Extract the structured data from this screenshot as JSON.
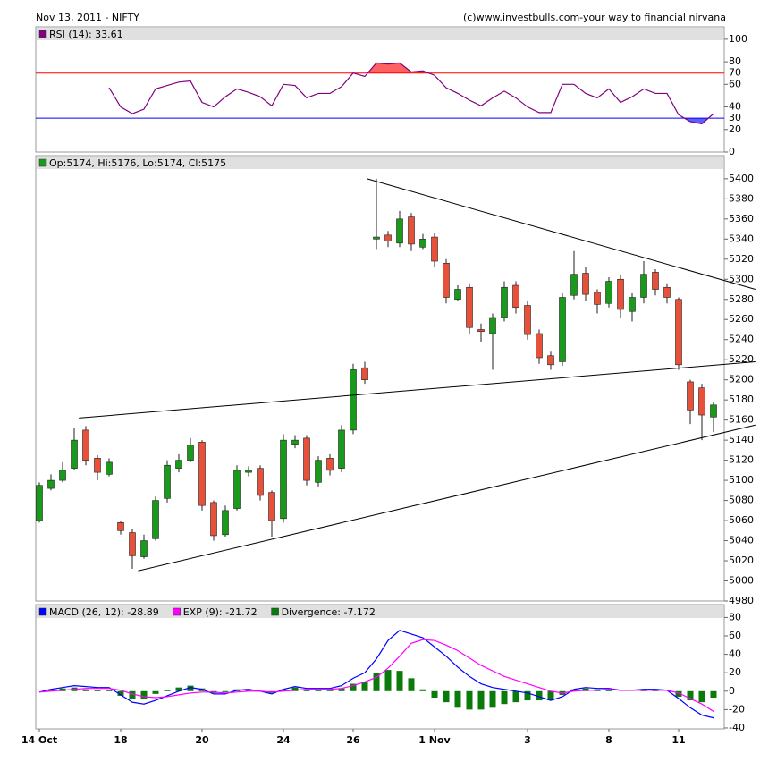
{
  "header": {
    "title": "Nov 13, 2011 -  NIFTY",
    "credit": "(c)www.investbulls.com-your way to financial nirvana"
  },
  "chart_data": [
    {
      "type": "line",
      "title": "RSI (14): 33.61",
      "color": "#800080",
      "values": [
        null,
        null,
        null,
        null,
        null,
        null,
        57,
        40,
        34,
        38,
        56,
        59,
        62,
        63,
        44,
        40,
        49,
        56,
        53,
        49,
        41,
        60,
        59,
        48,
        52,
        52,
        58,
        70,
        67,
        79,
        78,
        79,
        71,
        72,
        68,
        57,
        52,
        46,
        41,
        48,
        54,
        48,
        40,
        35,
        35,
        60,
        60,
        52,
        48,
        56,
        44,
        49,
        56,
        52,
        52,
        33,
        27,
        25,
        34
      ],
      "levels": [
        {
          "value": 70,
          "color": "#ff0000",
          "fill": "#ff6060"
        },
        {
          "value": 30,
          "color": "#0000ff",
          "fill": "#6060ff"
        }
      ],
      "ylim": [
        0,
        111
      ],
      "yticks": [
        0,
        20,
        40,
        60,
        80,
        100
      ]
    },
    {
      "type": "candlestick",
      "title": "Op:5174, Hi:5176, Lo:5174, Cl:5175",
      "legend_color": "#1a9a1a",
      "up_color": "#1a9a1a",
      "down_color": "#e8503a",
      "open": [
        5060,
        5092,
        5100,
        5112,
        5150,
        5122,
        5106,
        5058,
        5048,
        5024,
        5042,
        5082,
        5112,
        5120,
        5138,
        5078,
        5046,
        5072,
        5108,
        5112,
        5088,
        5062,
        5136,
        5142,
        5098,
        5122,
        5112,
        5150,
        5212,
        5340,
        5344,
        5336,
        5362,
        5332,
        5342,
        5316,
        5280,
        5292,
        5250,
        5246,
        5262,
        5294,
        5274,
        5246,
        5224,
        5218,
        5284,
        5306,
        5287,
        5276,
        5300,
        5268,
        5282,
        5307,
        5292,
        5280,
        5198,
        5192,
        5163
      ],
      "high": [
        5098,
        5106,
        5118,
        5152,
        5154,
        5125,
        5122,
        5060,
        5052,
        5046,
        5084,
        5120,
        5126,
        5142,
        5140,
        5080,
        5075,
        5115,
        5114,
        5115,
        5090,
        5146,
        5145,
        5145,
        5124,
        5126,
        5155,
        5216,
        5218,
        5400,
        5348,
        5368,
        5366,
        5345,
        5346,
        5320,
        5294,
        5296,
        5256,
        5266,
        5298,
        5298,
        5278,
        5250,
        5228,
        5286,
        5328,
        5312,
        5290,
        5302,
        5304,
        5286,
        5318,
        5310,
        5296,
        5282,
        5200,
        5196,
        5178
      ],
      "low": [
        5058,
        5090,
        5098,
        5110,
        5115,
        5100,
        5104,
        5046,
        5012,
        5022,
        5040,
        5078,
        5108,
        5118,
        5070,
        5040,
        5044,
        5070,
        5104,
        5080,
        5044,
        5058,
        5132,
        5095,
        5094,
        5105,
        5108,
        5146,
        5196,
        5330,
        5332,
        5332,
        5328,
        5330,
        5312,
        5276,
        5278,
        5246,
        5238,
        5210,
        5258,
        5266,
        5240,
        5216,
        5210,
        5214,
        5280,
        5278,
        5266,
        5272,
        5262,
        5258,
        5276,
        5284,
        5276,
        5210,
        5156,
        5140,
        5148
      ],
      "close": [
        5095,
        5100,
        5110,
        5140,
        5120,
        5108,
        5118,
        5050,
        5025,
        5040,
        5080,
        5115,
        5120,
        5135,
        5075,
        5045,
        5070,
        5110,
        5110,
        5085,
        5060,
        5140,
        5140,
        5100,
        5120,
        5110,
        5150,
        5210,
        5200,
        5342,
        5338,
        5360,
        5335,
        5340,
        5318,
        5282,
        5290,
        5252,
        5248,
        5262,
        5292,
        5272,
        5245,
        5222,
        5215,
        5282,
        5305,
        5285,
        5275,
        5298,
        5270,
        5282,
        5305,
        5290,
        5282,
        5215,
        5170,
        5165,
        5175
      ],
      "trendlines": [
        {
          "start": [
            3.4,
            5162
          ],
          "end": [
            61.6,
            5218
          ]
        },
        {
          "start": [
            28.2,
            5400
          ],
          "end": [
            61.6,
            5290
          ]
        },
        {
          "start": [
            8.5,
            5010
          ],
          "end": [
            61.6,
            5155
          ]
        }
      ],
      "ylim": [
        4980,
        5423
      ],
      "yticks": [
        4980,
        5000,
        5020,
        5040,
        5060,
        5080,
        5100,
        5120,
        5140,
        5160,
        5180,
        5200,
        5220,
        5240,
        5260,
        5280,
        5300,
        5320,
        5340,
        5360,
        5380,
        5400
      ]
    },
    {
      "type": "macd",
      "categories": [
        "14 Oct",
        null,
        null,
        null,
        null,
        null,
        null,
        "18",
        null,
        null,
        null,
        null,
        null,
        null,
        "20",
        null,
        null,
        null,
        null,
        null,
        null,
        "24",
        null,
        null,
        null,
        null,
        null,
        "26",
        null,
        null,
        null,
        null,
        null,
        null,
        "1 Nov",
        null,
        null,
        null,
        null,
        null,
        null,
        null,
        "3",
        null,
        null,
        null,
        null,
        null,
        null,
        "8",
        null,
        null,
        null,
        null,
        null,
        "11",
        null,
        null,
        null
      ],
      "series": [
        {
          "name": "MACD (26, 12): -28.89",
          "color": "#0000ff",
          "values": [
            -1,
            2,
            4,
            6,
            5,
            4,
            4,
            -4,
            -12,
            -14,
            -10,
            -5,
            0,
            4,
            2,
            -3,
            -3,
            1,
            2,
            0,
            -3,
            2,
            5,
            3,
            3,
            3,
            6,
            14,
            20,
            35,
            55,
            66,
            62,
            58,
            48,
            38,
            26,
            16,
            8,
            4,
            2,
            0,
            -2,
            -6,
            -10,
            -6,
            2,
            4,
            3,
            3,
            1,
            1,
            2,
            2,
            1,
            -8,
            -18,
            -26,
            -29
          ]
        },
        {
          "name": "EXP (9): -21.72",
          "color": "#ff00ff",
          "values": [
            -1,
            0,
            1,
            2,
            3,
            3,
            3,
            1,
            -3,
            -6,
            -7,
            -6,
            -4,
            -2,
            -1,
            -1,
            -2,
            -1,
            0,
            0,
            -1,
            0,
            1,
            2,
            2,
            2,
            3,
            6,
            10,
            15,
            25,
            38,
            52,
            56,
            55,
            50,
            44,
            36,
            28,
            22,
            16,
            12,
            8,
            4,
            0,
            -2,
            0,
            1,
            1,
            2,
            1,
            1,
            1,
            1,
            1,
            -2,
            -8,
            -14,
            -22
          ]
        },
        {
          "name": "Divergence: -7.172",
          "color": "#0a7a0a",
          "values": [
            0,
            2,
            3,
            4,
            2,
            1,
            1,
            -5,
            -9,
            -8,
            -3,
            1,
            4,
            6,
            3,
            -2,
            -1,
            2,
            2,
            0,
            -2,
            2,
            4,
            1,
            1,
            1,
            3,
            8,
            10,
            20,
            23,
            22,
            14,
            2,
            -7,
            -12,
            -18,
            -20,
            -20,
            -18,
            -14,
            -12,
            -10,
            -10,
            -10,
            -4,
            2,
            3,
            2,
            1,
            0,
            0,
            1,
            1,
            0,
            -6,
            -10,
            -12,
            -7
          ]
        }
      ],
      "ylim": [
        -41,
        94
      ],
      "yticks": [
        -40,
        -20,
        0,
        20,
        40,
        60,
        80
      ]
    }
  ]
}
